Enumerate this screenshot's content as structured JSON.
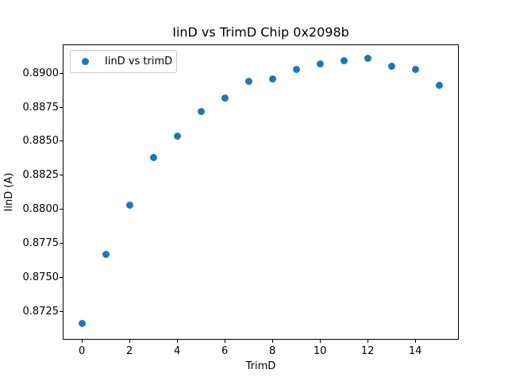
{
  "chart_data": {
    "type": "scatter",
    "title": "IinD vs TrimD Chip 0x2098b",
    "xlabel": "TrimD",
    "ylabel": "IinD (A)",
    "legend": {
      "position": "upper left",
      "entries": [
        {
          "label": "IinD vs trimD",
          "marker": "circle-icon",
          "color": "#1f77b4"
        }
      ]
    },
    "series": [
      {
        "name": "IinD vs trimD",
        "color": "#1f77b4",
        "x": [
          0,
          1,
          2,
          3,
          4,
          5,
          6,
          7,
          8,
          9,
          10,
          11,
          12,
          13,
          14,
          15
        ],
        "y": [
          0.8716,
          0.8767,
          0.8803,
          0.8838,
          0.8854,
          0.8872,
          0.8882,
          0.8894,
          0.8896,
          0.8903,
          0.8907,
          0.8909,
          0.8911,
          0.8905,
          0.8903,
          0.8891
        ]
      }
    ],
    "xlim": [
      -0.75,
      15.75
    ],
    "ylim": [
      0.8704,
      0.8921
    ],
    "xticks": {
      "values": [
        0,
        2,
        4,
        6,
        8,
        10,
        12,
        14
      ],
      "labels": [
        "0",
        "2",
        "4",
        "6",
        "8",
        "10",
        "12",
        "14"
      ]
    },
    "yticks": {
      "values": [
        0.8725,
        0.875,
        0.8775,
        0.88,
        0.8825,
        0.885,
        0.8875,
        0.89
      ],
      "labels": [
        "0.8725",
        "0.8750",
        "0.8775",
        "0.8800",
        "0.8825",
        "0.8850",
        "0.8875",
        "0.8900"
      ]
    },
    "grid": false
  }
}
